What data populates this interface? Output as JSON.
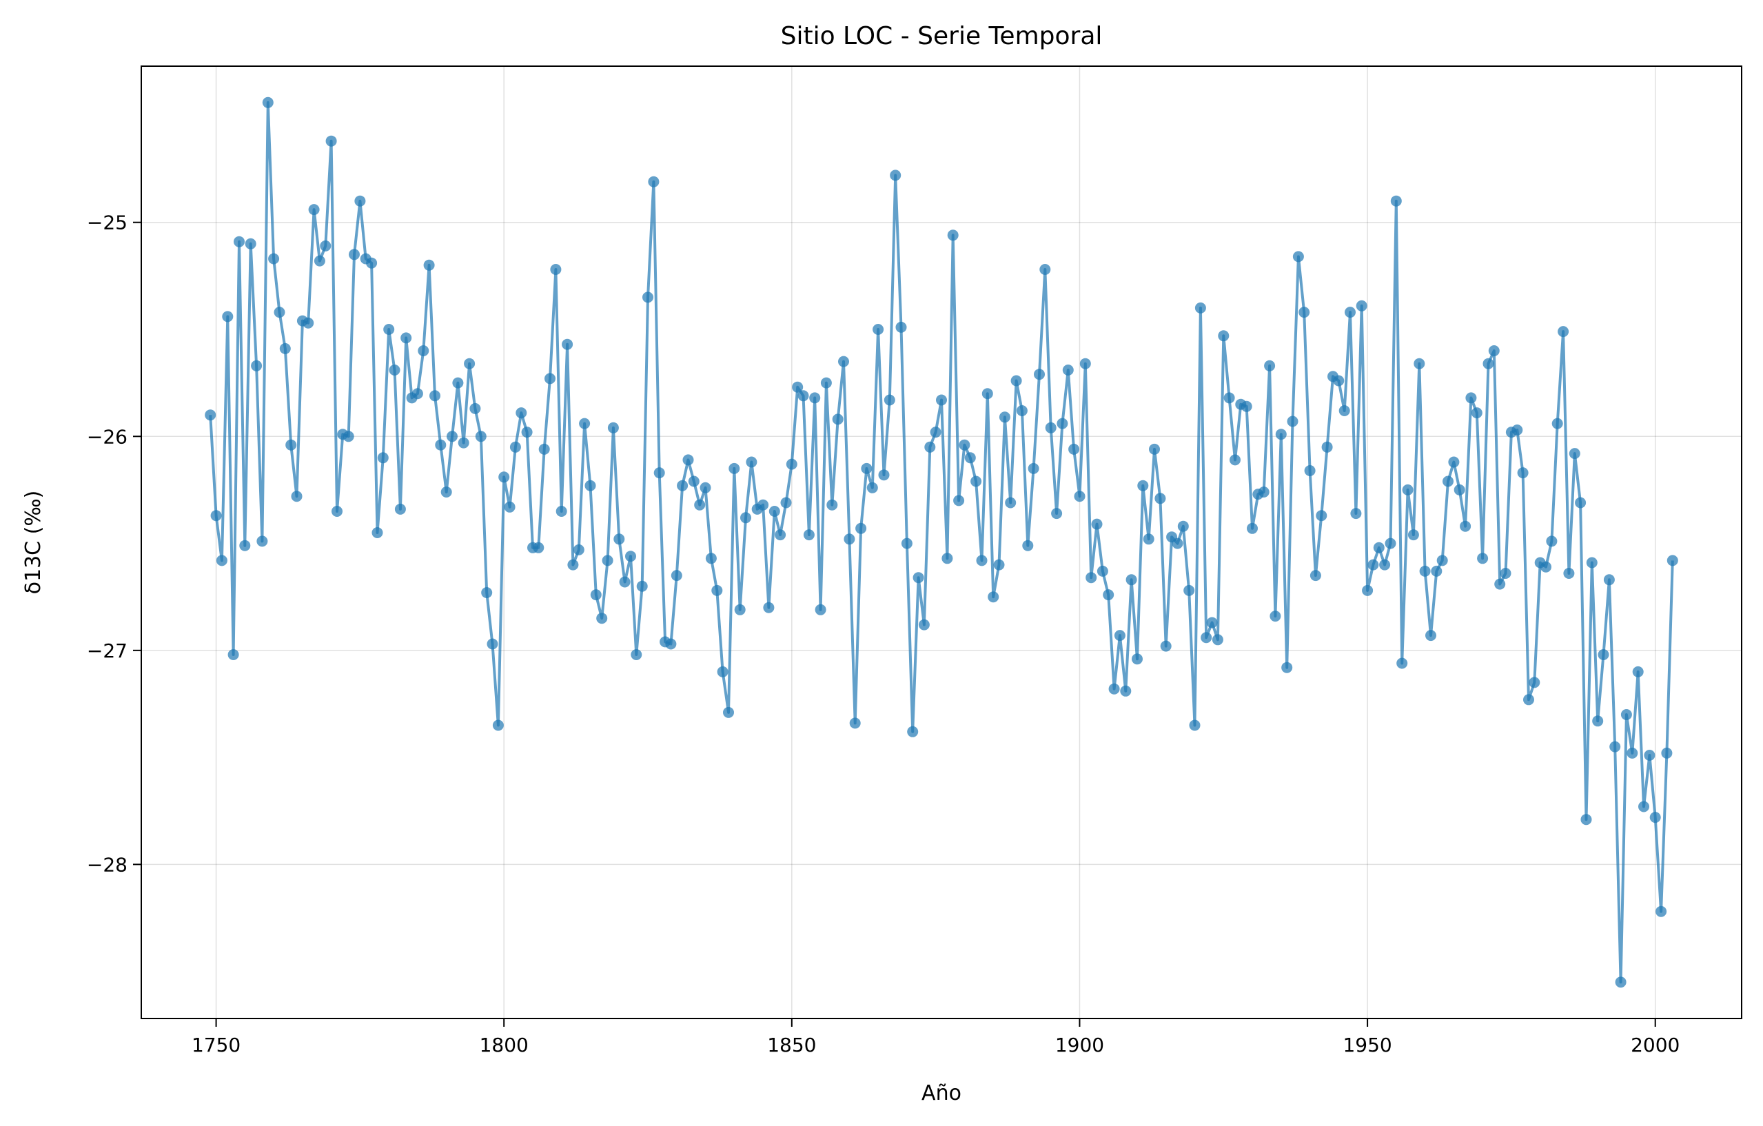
{
  "chart_data": {
    "type": "line",
    "title": "Sitio LOC  - Serie Temporal",
    "xlabel": "Año",
    "ylabel": "δ13C (‰)",
    "xlim": [
      1737,
      2015
    ],
    "ylim": [
      -28.72,
      -24.27
    ],
    "xticks": [
      1750,
      1800,
      1850,
      1900,
      1950,
      2000
    ],
    "xtick_labels": [
      "1750",
      "1800",
      "1850",
      "1900",
      "1950",
      "2000"
    ],
    "yticks": [
      -25,
      -26,
      -27,
      -28
    ],
    "ytick_labels": [
      "−25",
      "−26",
      "−27",
      "−28"
    ],
    "grid": true,
    "color": "#1f77b4",
    "series": [
      {
        "x": [
          1749,
          1750,
          1751,
          1752,
          1753,
          1754,
          1755,
          1756,
          1757,
          1758,
          1759,
          1760,
          1761,
          1762,
          1763,
          1764,
          1765,
          1766,
          1767,
          1768,
          1769,
          1770,
          1771,
          1772,
          1773,
          1774,
          1775,
          1776,
          1777,
          1778,
          1779,
          1780,
          1781,
          1782,
          1783,
          1784,
          1785,
          1786,
          1787,
          1788,
          1789,
          1790,
          1791,
          1792,
          1793,
          1794,
          1795,
          1796,
          1797,
          1798,
          1799,
          1800,
          1801,
          1802,
          1803,
          1804,
          1805,
          1806,
          1807,
          1808,
          1809,
          1810,
          1811,
          1812,
          1813,
          1814,
          1815,
          1816,
          1817,
          1818,
          1819,
          1820,
          1821,
          1822,
          1823,
          1824,
          1825,
          1826,
          1827,
          1828,
          1829,
          1830,
          1831,
          1832,
          1833,
          1834,
          1835,
          1836,
          1837,
          1838,
          1839,
          1840,
          1841,
          1842,
          1843,
          1844,
          1845,
          1846,
          1847,
          1848,
          1849,
          1850,
          1851,
          1852,
          1853,
          1854,
          1855,
          1856,
          1857,
          1858,
          1859,
          1860,
          1861,
          1862,
          1863,
          1864,
          1865,
          1866,
          1867,
          1868,
          1869,
          1870,
          1871,
          1872,
          1873,
          1874,
          1875,
          1876,
          1877,
          1878,
          1879,
          1880,
          1881,
          1882,
          1883,
          1884,
          1885,
          1886,
          1887,
          1888,
          1889,
          1890,
          1891,
          1892,
          1893,
          1894,
          1895,
          1896,
          1897,
          1898,
          1899,
          1900,
          1901,
          1902,
          1903,
          1904,
          1905,
          1906,
          1907,
          1908,
          1909,
          1910,
          1911,
          1912,
          1913,
          1914,
          1915,
          1916,
          1917,
          1918,
          1919,
          1920,
          1921,
          1922,
          1923,
          1924,
          1925,
          1926,
          1927,
          1928,
          1929,
          1930,
          1931,
          1932,
          1933,
          1934,
          1935,
          1936,
          1937,
          1938,
          1939,
          1940,
          1941,
          1942,
          1943,
          1944,
          1945,
          1946,
          1947,
          1948,
          1949,
          1950,
          1951,
          1952,
          1953,
          1954,
          1955,
          1956,
          1957,
          1958,
          1959,
          1960,
          1961,
          1962,
          1963,
          1964,
          1965,
          1966,
          1967,
          1968,
          1969,
          1970,
          1971,
          1972,
          1973,
          1974,
          1975,
          1976,
          1977,
          1978,
          1979,
          1980,
          1981,
          1982,
          1983,
          1984,
          1985,
          1986,
          1987,
          1988,
          1989,
          1990,
          1991,
          1992,
          1993,
          1994,
          1995,
          1996,
          1997,
          1998,
          1999,
          2000,
          2001,
          2002,
          2003
        ],
        "y": [
          -25.9,
          -26.37,
          -26.58,
          -25.44,
          -27.02,
          -25.09,
          -26.51,
          -25.1,
          -25.67,
          -26.49,
          -24.44,
          -25.17,
          -25.42,
          -25.59,
          -26.04,
          -26.28,
          -25.46,
          -25.47,
          -24.94,
          -25.18,
          -25.11,
          -24.62,
          -26.35,
          -25.99,
          -26.0,
          -25.15,
          -24.9,
          -25.17,
          -25.19,
          -26.45,
          -26.1,
          -25.5,
          -25.69,
          -26.34,
          -25.54,
          -25.82,
          -25.8,
          -25.6,
          -25.2,
          -25.81,
          -26.04,
          -26.26,
          -26.0,
          -25.75,
          -26.03,
          -25.66,
          -25.87,
          -26.0,
          -26.73,
          -26.97,
          -27.35,
          -26.19,
          -26.33,
          -26.05,
          -25.89,
          -25.98,
          -26.52,
          -26.52,
          -26.06,
          -25.73,
          -25.22,
          -26.35,
          -25.57,
          -26.6,
          -26.53,
          -25.94,
          -26.23,
          -26.74,
          -26.85,
          -26.58,
          -25.96,
          -26.48,
          -26.68,
          -26.56,
          -27.02,
          -26.7,
          -25.35,
          -24.81,
          -26.17,
          -26.96,
          -26.97,
          -26.65,
          -26.23,
          -26.11,
          -26.21,
          -26.32,
          -26.24,
          -26.57,
          -26.72,
          -27.1,
          -27.29,
          -26.15,
          -26.81,
          -26.38,
          -26.12,
          -26.34,
          -26.32,
          -26.8,
          -26.35,
          -26.46,
          -26.31,
          -26.13,
          -25.77,
          -25.81,
          -26.46,
          -25.82,
          -26.81,
          -25.75,
          -26.32,
          -25.92,
          -25.65,
          -26.48,
          -27.34,
          -26.43,
          -26.15,
          -26.24,
          -25.5,
          -26.18,
          -25.83,
          -24.78,
          -25.49,
          -26.5,
          -27.38,
          -26.66,
          -26.88,
          -26.05,
          -25.98,
          -25.83,
          -26.57,
          -25.06,
          -26.3,
          -26.04,
          -26.1,
          -26.21,
          -26.58,
          -25.8,
          -26.75,
          -26.6,
          -25.91,
          -26.31,
          -25.74,
          -25.88,
          -26.51,
          -26.15,
          -25.71,
          -25.22,
          -25.96,
          -26.36,
          -25.94,
          -25.69,
          -26.06,
          -26.28,
          -25.66,
          -26.66,
          -26.41,
          -26.63,
          -26.74,
          -27.18,
          -26.93,
          -27.19,
          -26.67,
          -27.04,
          -26.23,
          -26.48,
          -26.06,
          -26.29,
          -26.98,
          -26.47,
          -26.5,
          -26.42,
          -26.72,
          -27.35,
          -25.4,
          -26.94,
          -26.87,
          -26.95,
          -25.53,
          -25.82,
          -26.11,
          -25.85,
          -25.86,
          -26.43,
          -26.27,
          -26.26,
          -25.67,
          -26.84,
          -25.99,
          -27.08,
          -25.93,
          -25.16,
          -25.42,
          -26.16,
          -26.65,
          -26.37,
          -26.05,
          -25.72,
          -25.74,
          -25.88,
          -25.42,
          -26.36,
          -25.39,
          -26.72,
          -26.6,
          -26.52,
          -26.6,
          -26.5,
          -24.9,
          -27.06,
          -26.25,
          -26.46,
          -25.66,
          -26.63,
          -26.93,
          -26.63,
          -26.58,
          -26.21,
          -26.12,
          -26.25,
          -26.42,
          -25.82,
          -25.89,
          -26.57,
          -25.66,
          -25.6,
          -26.69,
          -26.64,
          -25.98,
          -25.97,
          -26.17,
          -27.23,
          -27.15,
          -26.59,
          -26.61,
          -26.49,
          -25.94,
          -25.51,
          -26.64,
          -26.08,
          -26.31,
          -27.79,
          -26.59,
          -27.33,
          -27.02,
          -26.67,
          -27.45,
          -28.55,
          -27.3,
          -27.48,
          -27.1,
          -27.73,
          -27.49,
          -27.78,
          -28.22,
          -27.48,
          -26.58
        ]
      }
    ]
  }
}
